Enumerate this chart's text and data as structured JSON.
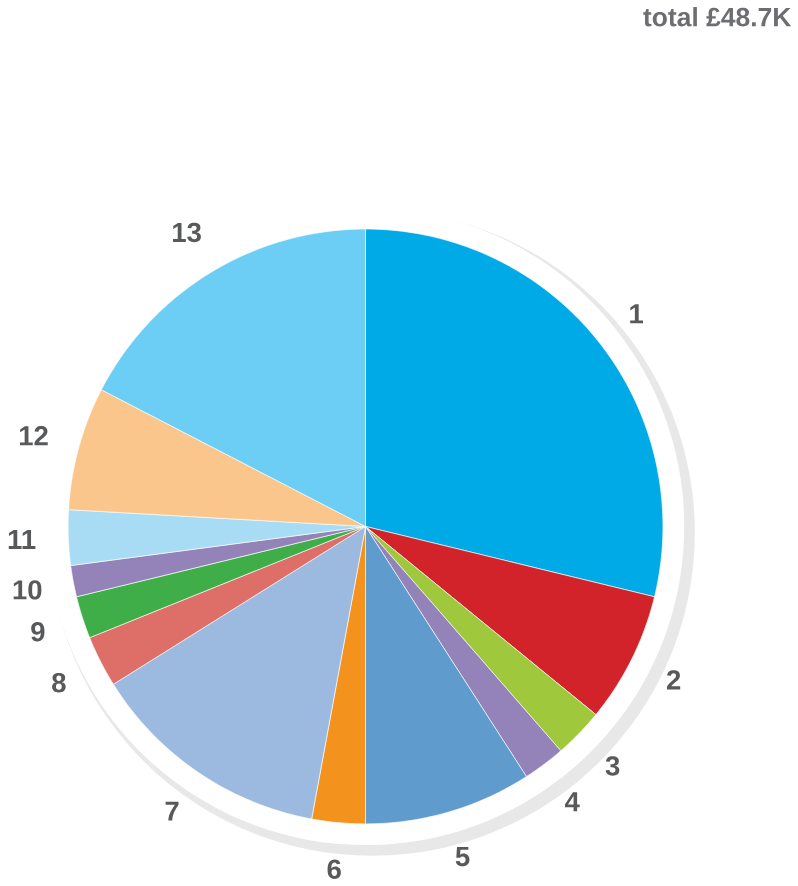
{
  "chart_data": {
    "type": "pie",
    "title": "total £48.7K",
    "categories": [
      "1",
      "2",
      "3",
      "4",
      "5",
      "6",
      "7",
      "8",
      "9",
      "10",
      "11",
      "12",
      "13"
    ],
    "values": [
      28.8,
      7.1,
      2.7,
      2.3,
      9.1,
      2.9,
      13.2,
      2.8,
      2.3,
      1.7,
      3.0,
      6.7,
      17.4
    ],
    "colors": [
      "#00aae6",
      "#d2232a",
      "#a0c83c",
      "#9383b8",
      "#5f9bcd",
      "#f4921e",
      "#9cb9e0",
      "#de6e68",
      "#3fae49",
      "#9383b8",
      "#a8dcf5",
      "#fbc68c",
      "#6ccef4"
    ]
  }
}
